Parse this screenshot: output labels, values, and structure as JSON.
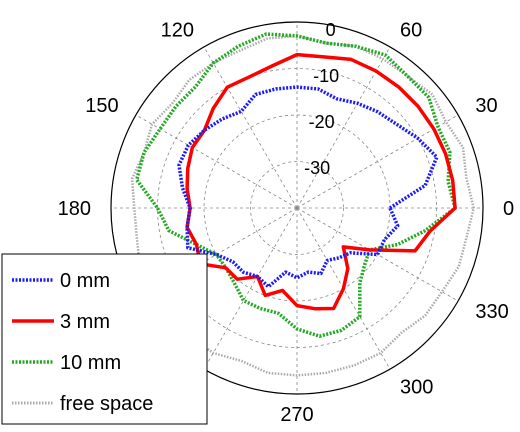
{
  "chart_data": {
    "type": "polar-line",
    "title": "",
    "r_range_db": [
      -40,
      0
    ],
    "r_ticks": [
      0,
      -10,
      -20,
      -30
    ],
    "r_tick_labels": [
      "0",
      "-10",
      "-20",
      "-30"
    ],
    "angle_tick_labels": [
      {
        "deg": 0,
        "label": "0"
      },
      {
        "deg": 30,
        "label": "30"
      },
      {
        "deg": 60,
        "label": "60"
      },
      {
        "deg": 120,
        "label": "120"
      },
      {
        "deg": 150,
        "label": "150"
      },
      {
        "deg": 180,
        "label": "180"
      },
      {
        "deg": 270,
        "label": "270"
      },
      {
        "deg": 300,
        "label": "300"
      },
      {
        "deg": 330,
        "label": "330"
      }
    ],
    "angle_direction": "counterclockwise",
    "grid": true,
    "legend_position": "bottom-left",
    "series": [
      {
        "name": "0 mm",
        "color": "#1a1aff",
        "style": "dotted",
        "theta": [
          0,
          10,
          20,
          30,
          40,
          50,
          60,
          70,
          80,
          90,
          100,
          110,
          120,
          130,
          140,
          150,
          160,
          170,
          180,
          190,
          200,
          210,
          220,
          230,
          240,
          250,
          260,
          270,
          280,
          290,
          300,
          310,
          320,
          330,
          340,
          350
        ],
        "r_db": [
          -20,
          -12,
          -8,
          -10,
          -12,
          -13,
          -14,
          -15,
          -14,
          -14,
          -14,
          -14,
          -16,
          -15,
          -14,
          -13,
          -13,
          -15,
          -17,
          -16,
          -15,
          -20,
          -22,
          -22,
          -23,
          -22,
          -26,
          -25,
          -26,
          -25,
          -27,
          -26,
          -25,
          -20,
          -20,
          -18
        ]
      },
      {
        "name": "3 mm",
        "color": "#ff0000",
        "style": "solid",
        "theta": [
          0,
          10,
          20,
          30,
          40,
          50,
          60,
          70,
          80,
          90,
          100,
          110,
          120,
          130,
          140,
          150,
          160,
          170,
          180,
          190,
          200,
          210,
          220,
          230,
          240,
          250,
          260,
          270,
          280,
          290,
          300,
          310,
          320,
          330,
          340,
          350
        ],
        "r_db": [
          -6,
          -6,
          -6,
          -6,
          -6,
          -6,
          -6,
          -6,
          -7,
          -7,
          -9,
          -10,
          -10,
          -12,
          -14,
          -14,
          -15,
          -16,
          -17,
          -16,
          -17,
          -16,
          -20,
          -20,
          -23,
          -20,
          -22,
          -19,
          -18,
          -17,
          -20,
          -23,
          -27,
          -22,
          -13,
          -11
        ]
      },
      {
        "name": "10 mm",
        "color": "#22aa22",
        "style": "dotted",
        "theta": [
          0,
          10,
          20,
          30,
          40,
          50,
          60,
          70,
          80,
          90,
          100,
          110,
          120,
          130,
          140,
          150,
          160,
          170,
          180,
          190,
          200,
          210,
          220,
          230,
          240,
          250,
          260,
          270,
          280,
          290,
          300,
          310,
          320,
          330,
          340,
          350
        ],
        "r_db": [
          -6,
          -7,
          -5,
          -5,
          -3,
          -3,
          -2,
          -3,
          -4,
          -3,
          -2,
          -3,
          -4,
          -6,
          -6,
          -6,
          -5,
          -5,
          -10,
          -12,
          -17,
          -20,
          -20,
          -19,
          -17,
          -17,
          -17,
          -14,
          -12,
          -12,
          -13,
          -19,
          -21,
          -22,
          -17,
          -12
        ]
      },
      {
        "name": "free space",
        "color": "#aaaaaa",
        "style": "dotted",
        "theta": [
          0,
          10,
          20,
          30,
          40,
          50,
          60,
          70,
          80,
          90,
          100,
          110,
          120,
          130,
          140,
          150,
          160,
          170,
          180,
          190,
          200,
          210,
          220,
          230,
          240,
          250,
          260,
          270,
          280,
          290,
          300,
          310,
          320,
          330,
          340,
          350
        ],
        "r_db": [
          -2,
          -3,
          -2,
          -3,
          -2,
          -3,
          -3,
          -3,
          -4,
          -3,
          -3,
          -4,
          -4,
          -4,
          -5,
          -4,
          -5,
          -4,
          -5,
          -5,
          -4,
          -5,
          -4,
          -4,
          -4,
          -5,
          -4,
          -4,
          -4,
          -4,
          -4,
          -5,
          -4,
          -4,
          -3,
          -3
        ]
      }
    ]
  }
}
